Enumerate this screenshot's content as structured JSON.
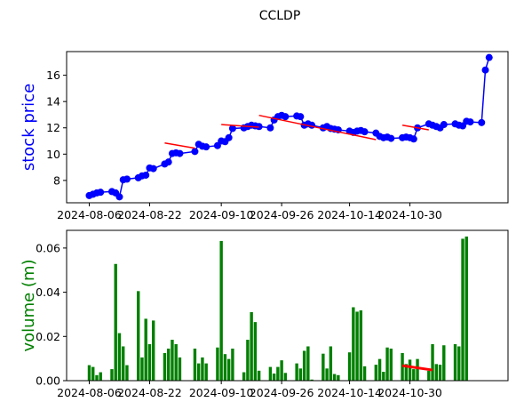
{
  "chart_data": [
    {
      "type": "line",
      "title": "CCLDP",
      "ylabel": "stock price",
      "ylabel_color": "#0000ff",
      "ylim": [
        6.3,
        17.8
      ],
      "xlim": [
        "2024-07-31",
        "2024-11-25"
      ],
      "yticks": [
        8,
        10,
        12,
        14,
        16
      ],
      "xticks": [
        "2024-08-06",
        "2024-08-22",
        "2024-09-10",
        "2024-09-26",
        "2024-10-14",
        "2024-10-30"
      ],
      "grid": false,
      "series": [
        {
          "color": "#0000ff",
          "marker": "circle",
          "x": [
            "2024-08-06",
            "2024-08-07",
            "2024-08-08",
            "2024-08-09",
            "2024-08-12",
            "2024-08-13",
            "2024-08-14",
            "2024-08-15",
            "2024-08-16",
            "2024-08-19",
            "2024-08-20",
            "2024-08-21",
            "2024-08-22",
            "2024-08-23",
            "2024-08-26",
            "2024-08-27",
            "2024-08-28",
            "2024-08-29",
            "2024-08-30",
            "2024-09-03",
            "2024-09-04",
            "2024-09-05",
            "2024-09-06",
            "2024-09-09",
            "2024-09-10",
            "2024-09-11",
            "2024-09-12",
            "2024-09-13",
            "2024-09-16",
            "2024-09-17",
            "2024-09-18",
            "2024-09-19",
            "2024-09-20",
            "2024-09-23",
            "2024-09-24",
            "2024-09-25",
            "2024-09-26",
            "2024-09-27",
            "2024-09-30",
            "2024-10-01",
            "2024-10-02",
            "2024-10-03",
            "2024-10-04",
            "2024-10-07",
            "2024-10-08",
            "2024-10-09",
            "2024-10-10",
            "2024-10-11",
            "2024-10-14",
            "2024-10-15",
            "2024-10-16",
            "2024-10-17",
            "2024-10-18",
            "2024-10-21",
            "2024-10-22",
            "2024-10-23",
            "2024-10-24",
            "2024-10-25",
            "2024-10-28",
            "2024-10-29",
            "2024-10-30",
            "2024-10-31",
            "2024-11-01",
            "2024-11-04",
            "2024-11-05",
            "2024-11-06",
            "2024-11-07",
            "2024-11-08",
            "2024-11-11",
            "2024-11-12",
            "2024-11-13",
            "2024-11-14",
            "2024-11-15",
            "2024-11-18",
            "2024-11-19",
            "2024-11-20"
          ],
          "y": [
            6.85,
            6.95,
            7.05,
            7.1,
            7.15,
            7.05,
            6.75,
            8.05,
            8.1,
            8.2,
            8.35,
            8.4,
            8.95,
            8.9,
            9.25,
            9.4,
            10.05,
            10.1,
            10.05,
            10.2,
            10.75,
            10.6,
            10.55,
            10.65,
            11.0,
            10.95,
            11.25,
            11.95,
            12.0,
            12.1,
            12.2,
            12.15,
            12.1,
            12.0,
            12.6,
            12.85,
            12.95,
            12.85,
            12.9,
            12.85,
            12.2,
            12.3,
            12.2,
            12.0,
            12.1,
            11.95,
            11.9,
            11.85,
            11.75,
            11.65,
            11.75,
            11.8,
            11.7,
            11.6,
            11.35,
            11.25,
            11.3,
            11.2,
            11.25,
            11.3,
            11.25,
            11.15,
            12.0,
            12.3,
            12.2,
            12.1,
            12.0,
            12.25,
            12.3,
            12.2,
            12.15,
            12.5,
            12.45,
            12.4,
            16.4,
            17.35
          ]
        }
      ],
      "trend_segments": [
        {
          "color": "#ff0000",
          "x": [
            "2024-08-26",
            "2024-09-03"
          ],
          "y": [
            10.85,
            10.45
          ]
        },
        {
          "color": "#ff0000",
          "x": [
            "2024-09-10",
            "2024-09-20"
          ],
          "y": [
            12.25,
            12.05
          ]
        },
        {
          "color": "#ff0000",
          "x": [
            "2024-09-20",
            "2024-10-21"
          ],
          "y": [
            12.95,
            11.1
          ]
        },
        {
          "color": "#ff0000",
          "x": [
            "2024-10-28",
            "2024-11-04"
          ],
          "y": [
            12.2,
            11.85
          ]
        }
      ]
    },
    {
      "type": "bar",
      "ylabel": "volume (m)",
      "ylabel_color": "#008000",
      "ylim": [
        0,
        0.068
      ],
      "xlim": [
        "2024-07-31",
        "2024-11-25"
      ],
      "yticks": [
        0.0,
        0.02,
        0.04,
        0.06
      ],
      "ytick_labels": [
        "0.00",
        "0.02",
        "0.04",
        "0.06"
      ],
      "xticks": [
        "2024-08-06",
        "2024-08-22",
        "2024-09-10",
        "2024-09-26",
        "2024-10-14",
        "2024-10-30"
      ],
      "grid": false,
      "series": [
        {
          "color": "#008000",
          "x": [
            "2024-08-06",
            "2024-08-07",
            "2024-08-08",
            "2024-08-09",
            "2024-08-12",
            "2024-08-13",
            "2024-08-14",
            "2024-08-15",
            "2024-08-16",
            "2024-08-19",
            "2024-08-20",
            "2024-08-21",
            "2024-08-22",
            "2024-08-23",
            "2024-08-26",
            "2024-08-27",
            "2024-08-28",
            "2024-08-29",
            "2024-08-30",
            "2024-09-03",
            "2024-09-04",
            "2024-09-05",
            "2024-09-06",
            "2024-09-09",
            "2024-09-10",
            "2024-09-11",
            "2024-09-12",
            "2024-09-13",
            "2024-09-16",
            "2024-09-17",
            "2024-09-18",
            "2024-09-19",
            "2024-09-20",
            "2024-09-23",
            "2024-09-24",
            "2024-09-25",
            "2024-09-26",
            "2024-09-27",
            "2024-09-30",
            "2024-10-01",
            "2024-10-02",
            "2024-10-03",
            "2024-10-04",
            "2024-10-07",
            "2024-10-08",
            "2024-10-09",
            "2024-10-10",
            "2024-10-11",
            "2024-10-14",
            "2024-10-15",
            "2024-10-16",
            "2024-10-17",
            "2024-10-18",
            "2024-10-21",
            "2024-10-22",
            "2024-10-23",
            "2024-10-24",
            "2024-10-25",
            "2024-10-28",
            "2024-10-29",
            "2024-10-30",
            "2024-10-31",
            "2024-11-01",
            "2024-11-04",
            "2024-11-05",
            "2024-11-06",
            "2024-11-07",
            "2024-11-08",
            "2024-11-11",
            "2024-11-12",
            "2024-11-13",
            "2024-11-14",
            "2024-11-15",
            "2024-11-18",
            "2024-11-19",
            "2024-11-20"
          ],
          "values": [
            0.007,
            0.0062,
            0.0025,
            0.0038,
            0.0052,
            0.0528,
            0.0215,
            0.0155,
            0.007,
            0.0405,
            0.0105,
            0.028,
            0.0165,
            0.0272,
            0.0125,
            0.0145,
            0.0185,
            0.0165,
            0.0105,
            0.0145,
            0.0078,
            0.0105,
            0.0078,
            0.015,
            0.0632,
            0.012,
            0.0098,
            0.0145,
            0.0038,
            0.0185,
            0.031,
            0.0265,
            0.0045,
            0.0062,
            0.0032,
            0.0062,
            0.0092,
            0.0035,
            0.0078,
            0.0055,
            0.0135,
            0.0155,
            0.0005,
            0.0122,
            0.0055,
            0.0155,
            0.003,
            0.0025,
            0.0128,
            0.0332,
            0.0312,
            0.0318,
            0.0065,
            0.0072,
            0.0098,
            0.004,
            0.015,
            0.0145,
            0.0125,
            0.0075,
            0.0095,
            0.0052,
            0.0098,
            0.0045,
            0.0165,
            0.0075,
            0.0072,
            0.016,
            0.0165,
            0.0155,
            0.0642,
            0.0652,
            0.0,
            0.0,
            0.0,
            0.0
          ]
        }
      ],
      "trend_segments": [
        {
          "color": "#ff0000",
          "x": [
            "2024-10-28",
            "2024-11-05"
          ],
          "y": [
            0.0068,
            0.0048
          ]
        }
      ]
    }
  ]
}
